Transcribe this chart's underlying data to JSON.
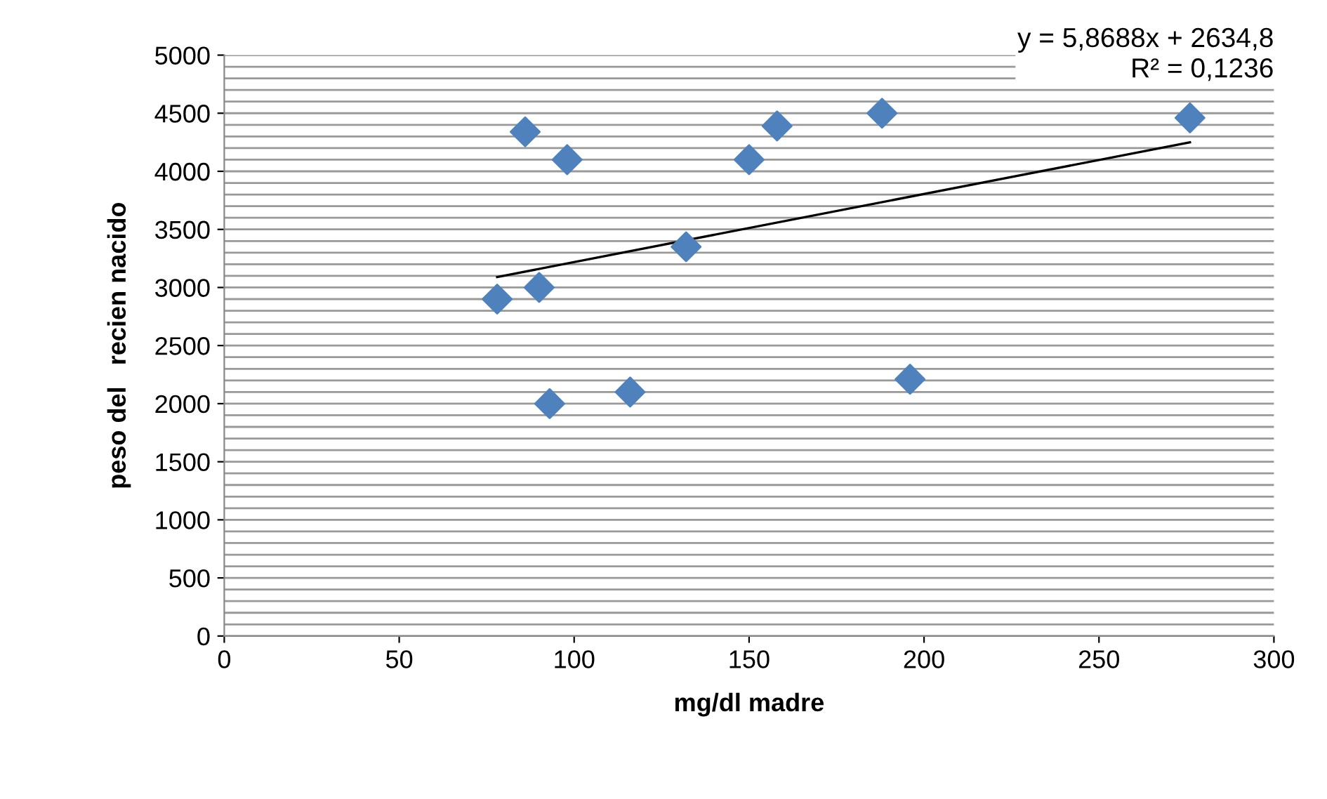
{
  "chart_data": {
    "type": "scatter",
    "xlabel": "mg/dl madre",
    "ylabel": "peso del   recien nacido",
    "series": [
      {
        "color": "#4f81bd",
        "marker": "diamond",
        "x": [
          78,
          86,
          98,
          90,
          93,
          116,
          132,
          150,
          158,
          188,
          196,
          276
        ],
        "values": [
          2900,
          4340,
          4100,
          3000,
          2000,
          2100,
          3350,
          4100,
          4390,
          4500,
          2210,
          4460
        ]
      },
      {
        "type": "line",
        "color": "#000000",
        "marker": "none",
        "line_style": "solid",
        "x": [
          78,
          276
        ],
        "values": [
          3090,
          4250
        ]
      }
    ],
    "annotations": [
      "y = 5,8688x + 2634,8",
      "R² = 0,1236"
    ],
    "xlim": [
      0,
      300
    ],
    "xticks": [
      0,
      50,
      100,
      150,
      200,
      250,
      300
    ],
    "ylim": [
      0,
      5000
    ],
    "yticks": [
      0,
      {
        "value": 100,
        "label": null
      },
      {
        "value": 200,
        "label": null
      },
      {
        "value": 300,
        "label": null
      },
      {
        "value": 400,
        "label": null
      },
      500,
      {
        "value": 600,
        "label": null
      },
      {
        "value": 700,
        "label": null
      },
      {
        "value": 800,
        "label": null
      },
      {
        "value": 900,
        "label": null
      },
      1000,
      {
        "value": 1100,
        "label": null
      },
      {
        "value": 1200,
        "label": null
      },
      {
        "value": 1300,
        "label": null
      },
      {
        "value": 1400,
        "label": null
      },
      1500,
      {
        "value": 1600,
        "label": null
      },
      {
        "value": 1700,
        "label": null
      },
      {
        "value": 1800,
        "label": null
      },
      {
        "value": 1900,
        "label": null
      },
      2000,
      {
        "value": 2100,
        "label": null
      },
      {
        "value": 2200,
        "label": null
      },
      {
        "value": 2300,
        "label": null
      },
      {
        "value": 2400,
        "label": null
      },
      2500,
      {
        "value": 2600,
        "label": null
      },
      {
        "value": 2700,
        "label": null
      },
      {
        "value": 2800,
        "label": null
      },
      {
        "value": 2900,
        "label": null
      },
      3000,
      {
        "value": 3100,
        "label": null
      },
      {
        "value": 3200,
        "label": null
      },
      {
        "value": 3300,
        "label": null
      },
      {
        "value": 3400,
        "label": null
      },
      3500,
      {
        "value": 3600,
        "label": null
      },
      {
        "value": 3700,
        "label": null
      },
      {
        "value": 3800,
        "label": null
      },
      {
        "value": 3900,
        "label": null
      },
      4000,
      {
        "value": 4100,
        "label": null
      },
      {
        "value": 4200,
        "label": null
      },
      {
        "value": 4300,
        "label": null
      },
      {
        "value": 4400,
        "label": null
      },
      4500,
      {
        "value": 4600,
        "label": null
      },
      {
        "value": 4700,
        "label": null
      },
      {
        "value": 4800,
        "label": null
      },
      {
        "value": 4900,
        "label": null
      },
      5000
    ],
    "grid": "y",
    "legend": false
  }
}
